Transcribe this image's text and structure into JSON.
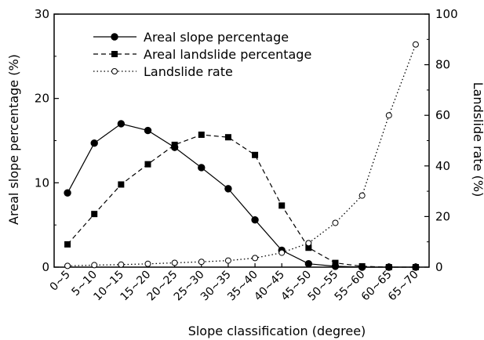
{
  "chart_data": {
    "type": "line",
    "categories": [
      "0~5",
      "5~10",
      "10~15",
      "15~20",
      "20~25",
      "25~30",
      "30~35",
      "35~40",
      "40~45",
      "45~50",
      "50~55",
      "55~60",
      "60~65",
      "65~70"
    ],
    "xlabel": "Slope classification (degree)",
    "ylabel_left": "Areal slope percentage (%)",
    "ylabel_right": "Landslide rate (%)",
    "ylim_left": [
      0,
      30
    ],
    "ylim_right": [
      0,
      100
    ],
    "yticks_left": [
      0,
      10,
      20,
      30
    ],
    "yticks_right": [
      0,
      20,
      40,
      60,
      80,
      100
    ],
    "grid": false,
    "legend_position": "top-left",
    "series": [
      {
        "name": "Areal slope percentage",
        "axis": "left",
        "marker": "filled-circle",
        "line": "solid",
        "values": [
          8.8,
          14.7,
          17.0,
          16.2,
          14.2,
          11.8,
          9.3,
          5.6,
          2.0,
          0.4,
          0.1,
          0.0,
          0.0,
          0.0
        ]
      },
      {
        "name": "Areal landslide percentage",
        "axis": "left",
        "marker": "filled-square",
        "line": "dashed",
        "values": [
          2.7,
          6.3,
          9.8,
          12.2,
          14.5,
          15.7,
          15.4,
          13.3,
          7.3,
          2.3,
          0.5,
          0.1,
          0.0,
          0.0
        ]
      },
      {
        "name": "Landslide rate",
        "axis": "right",
        "marker": "open-circle",
        "line": "dotted",
        "values": [
          0.5,
          0.8,
          1.0,
          1.3,
          1.7,
          2.1,
          2.6,
          3.6,
          5.7,
          9.5,
          17.5,
          28.3,
          60.0,
          88.0
        ]
      }
    ]
  }
}
